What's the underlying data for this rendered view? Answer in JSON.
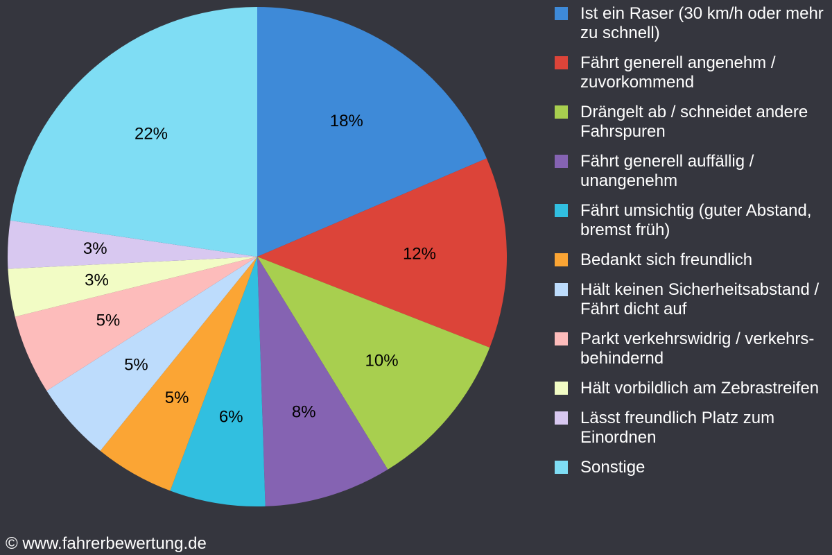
{
  "chart_data": {
    "type": "pie",
    "title": "",
    "legend_position": "right",
    "slices": [
      {
        "name": "Ist ein Raser (30 km/h oder mehr zu schnell)",
        "value": 18,
        "label": "18%",
        "color": "#3e8ad8"
      },
      {
        "name": "Fährt generell angenehm / zuvorkommend",
        "value": 12,
        "label": "12%",
        "color": "#dc4439"
      },
      {
        "name": "Drängelt ab / schneidet andere Fahrspuren",
        "value": 10,
        "label": "10%",
        "color": "#a8cf4f"
      },
      {
        "name": "Fährt generell auffällig / unangenehm",
        "value": 8,
        "label": "8%",
        "color": "#8563b2"
      },
      {
        "name": "Fährt umsichtig (guter Abstand, bremst früh)",
        "value": 6,
        "label": "6%",
        "color": "#31bfe0"
      },
      {
        "name": "Bedankt sich freundlich",
        "value": 5,
        "label": "5%",
        "color": "#fba534"
      },
      {
        "name": "Hält keinen Sicherheitsabstand / Fährt dicht auf",
        "value": 5,
        "label": "5%",
        "color": "#bddcfc"
      },
      {
        "name": "Parkt verkehrswidrig / verkehrs-behindernd",
        "value": 5,
        "label": "5%",
        "color": "#fdbcbb"
      },
      {
        "name": "Hält vorbildlich am Zebrastreifen",
        "value": 3,
        "label": "3%",
        "color": "#f2fcc5"
      },
      {
        "name": "Lässt freundlich Platz zum Einordnen",
        "value": 3,
        "label": "3%",
        "color": "#d8c8f0"
      },
      {
        "name": "Sonstige",
        "value": 22,
        "label": "22%",
        "color": "#7fddf4"
      }
    ]
  },
  "footer": {
    "copyright": "© www.fahrerbewertung.de"
  }
}
